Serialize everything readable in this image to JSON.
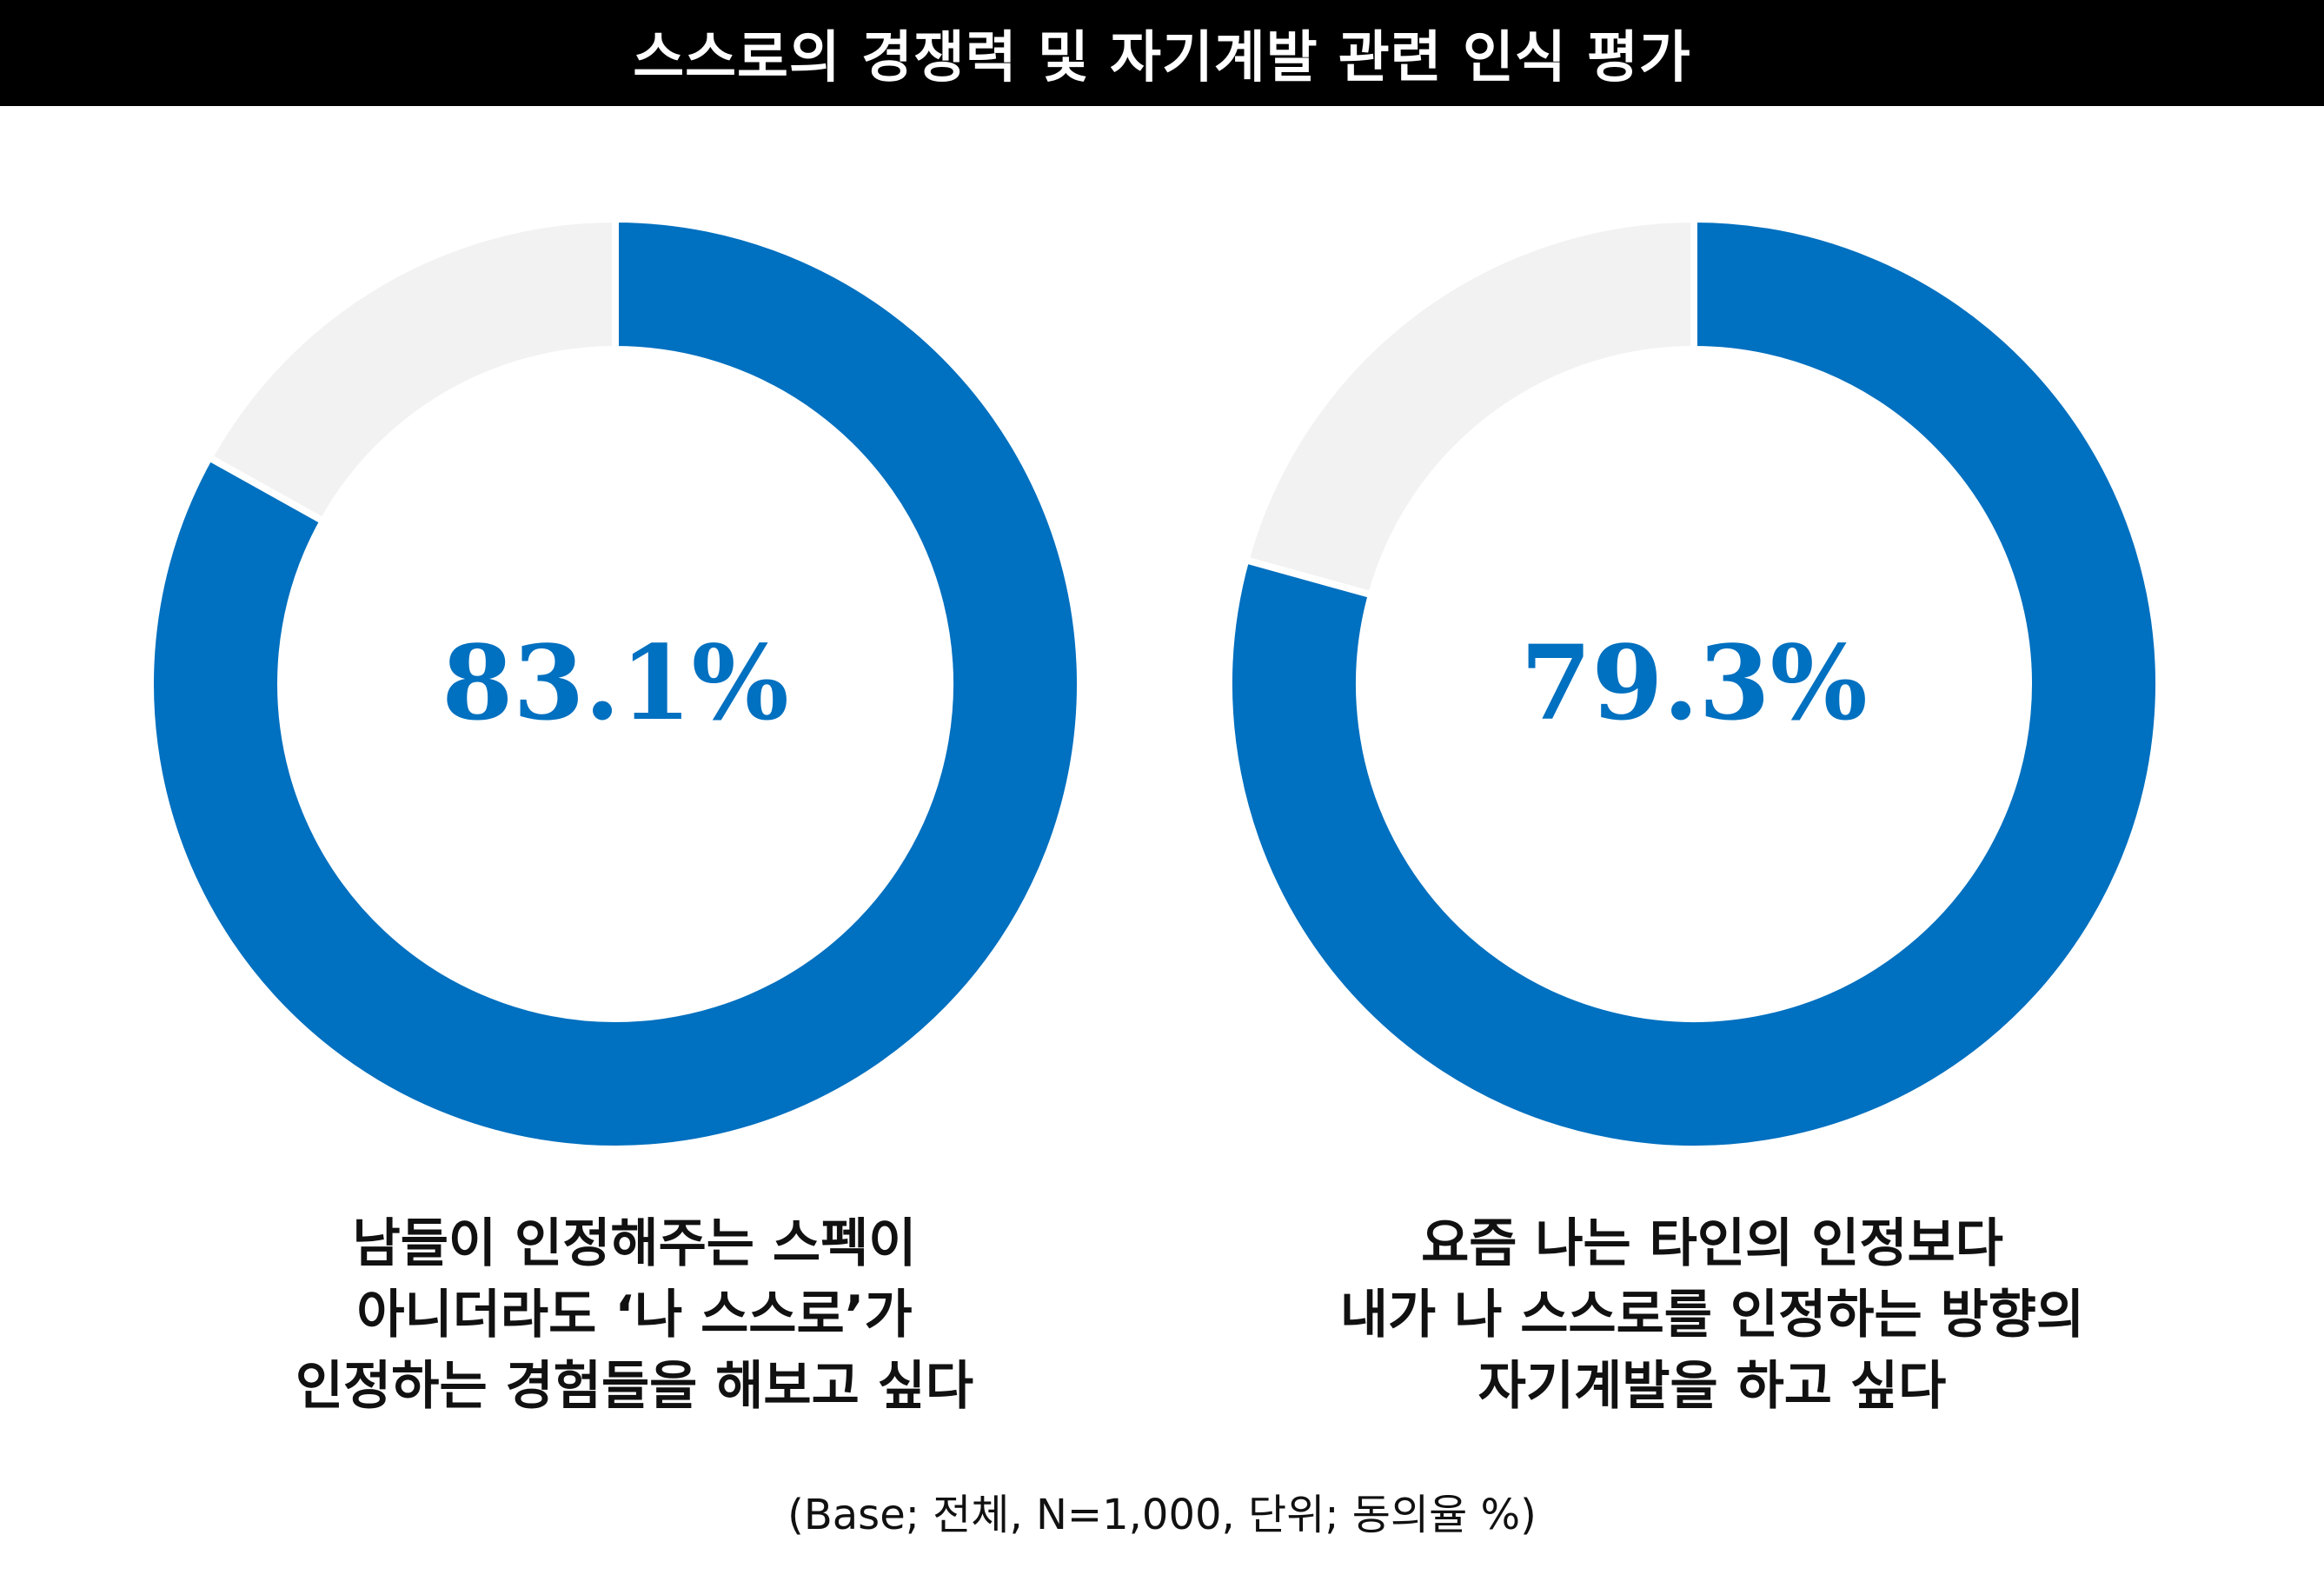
{
  "title": "스스로의 경쟁력 및 자기계발 관련 인식 평가",
  "footnote": "(Base; 전체, N=1,000, 단위; 동의율 %)",
  "colors": {
    "agree": "#0070C0",
    "remainder": "#F2F2F2",
    "title_bg": "#000000",
    "title_text": "#FFFFFF"
  },
  "chart_data": [
    {
      "type": "pie",
      "variant": "donut",
      "center_label": "83.1%",
      "values": [
        83.1,
        16.9
      ],
      "caption_lines": [
        "남들이 인정해주는 스펙이",
        "아니더라도 ‘나 스스로’가",
        "인정하는 경험들을 해보고 싶다"
      ]
    },
    {
      "type": "pie",
      "variant": "donut",
      "center_label": "79.3%",
      "values": [
        79.3,
        20.7
      ],
      "caption_lines": [
        "요즘 나는 타인의 인정보다",
        "내가 나 스스로를 인정하는 방향의",
        "자기계발을 하고 싶다"
      ]
    }
  ]
}
